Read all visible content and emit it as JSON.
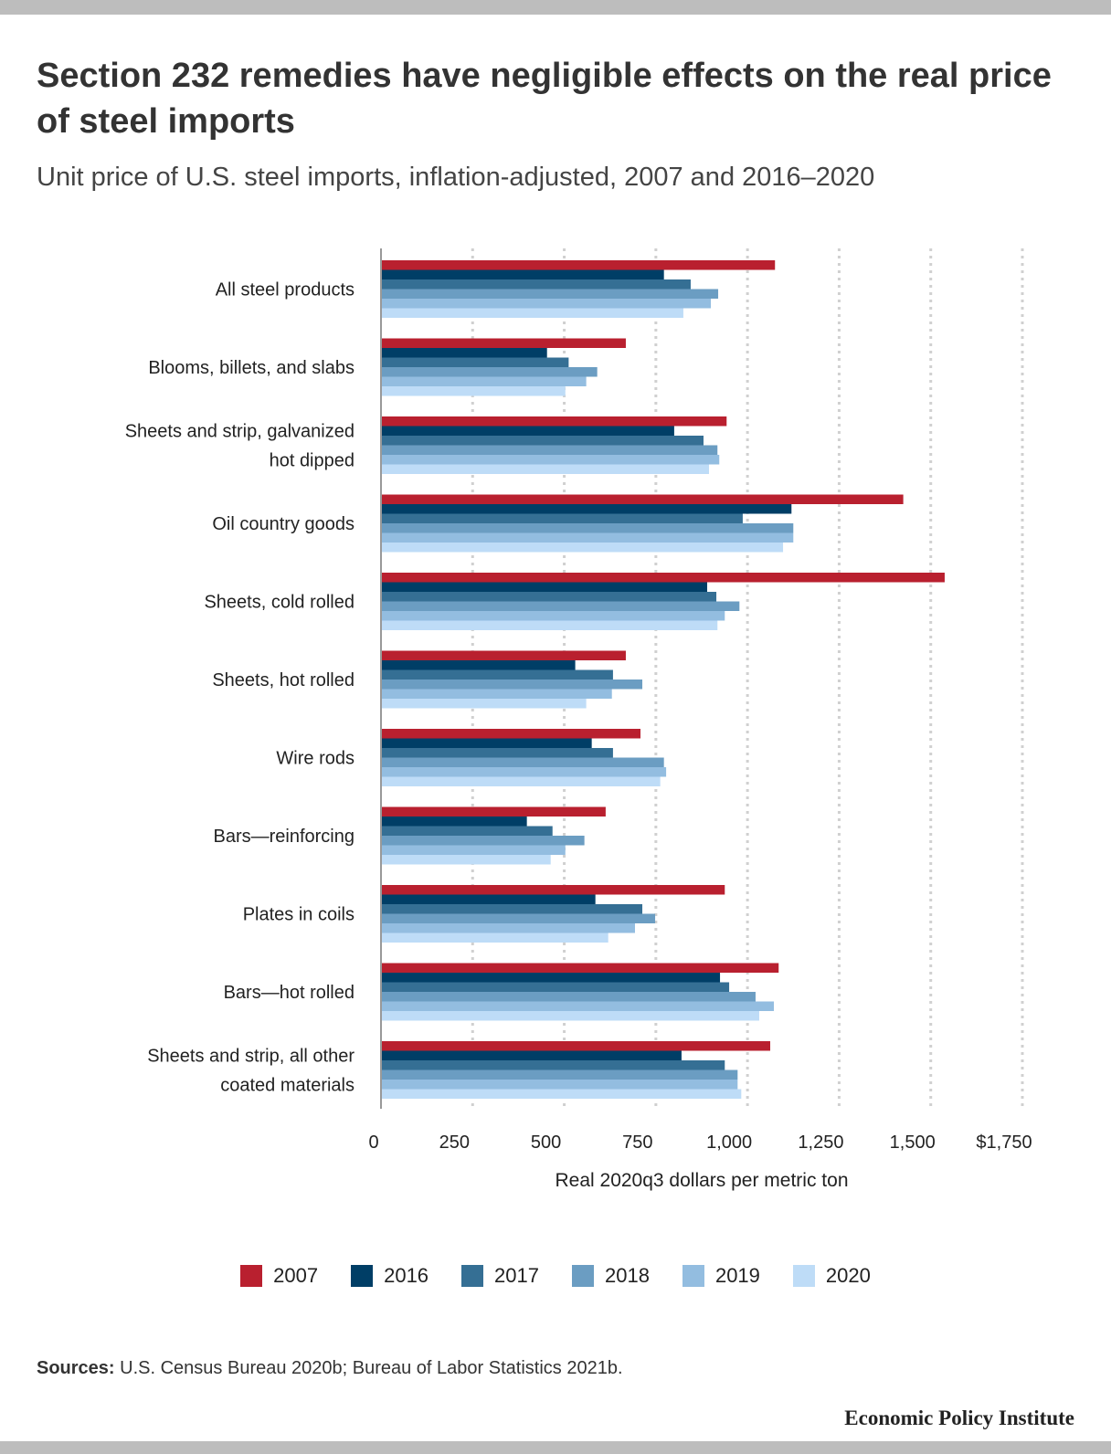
{
  "title": "Section 232 remedies have negligible effects on the real price of steel imports",
  "subtitle": "Unit price of U.S. steel imports, inflation-adjusted, 2007 and 2016–2020",
  "source_label": "Sources:",
  "source_text": "U.S. Census Bureau 2020b; Bureau of Labor Statistics 2021b.",
  "brand": "Economic Policy Institute",
  "chart_data": {
    "type": "bar",
    "orientation": "horizontal",
    "title": "Section 232 remedies have negligible effects on the real price of steel imports",
    "subtitle": "Unit price of U.S. steel imports, inflation-adjusted, 2007 and 2016–2020",
    "xlabel": "Real 2020q3 dollars per metric ton",
    "ylabel": "",
    "xlim": [
      0,
      1750
    ],
    "xticks": [
      0,
      250,
      500,
      750,
      1000,
      1250,
      1500,
      1750
    ],
    "xtick_labels": [
      "0",
      "250",
      "500",
      "750",
      "1,000",
      "1,250",
      "1,500",
      "$1,750"
    ],
    "grid": "vertical dotted",
    "legend_position": "bottom",
    "categories": [
      "All steel products",
      "Blooms, billets, and slabs",
      "Sheets and strip, galvanized hot dipped",
      "Oil country goods",
      "Sheets, cold rolled",
      "Sheets, hot rolled",
      "Wire rods",
      "Bars—reinforcing",
      "Plates in coils",
      "Bars—hot rolled",
      "Sheets and strip, all other coated materials"
    ],
    "series": [
      {
        "name": "2007",
        "color": "#b9202f",
        "values": [
          1075,
          668,
          943,
          1425,
          1538,
          668,
          708,
          613,
          938,
          1085,
          1062
        ]
      },
      {
        "name": "2016",
        "color": "#003e66",
        "values": [
          772,
          453,
          800,
          1120,
          890,
          530,
          575,
          398,
          585,
          925,
          820
        ]
      },
      {
        "name": "2017",
        "color": "#356f94",
        "values": [
          845,
          512,
          880,
          987,
          915,
          633,
          633,
          468,
          713,
          950,
          938
        ]
      },
      {
        "name": "2018",
        "color": "#6b9dc2",
        "values": [
          920,
          590,
          918,
          1125,
          978,
          713,
          772,
          555,
          748,
          1022,
          973
        ]
      },
      {
        "name": "2019",
        "color": "#93bde0",
        "values": [
          900,
          560,
          923,
          1125,
          938,
          630,
          778,
          503,
          693,
          1072,
          973
        ]
      },
      {
        "name": "2020",
        "color": "#bedcf7",
        "values": [
          825,
          503,
          895,
          1097,
          918,
          560,
          762,
          463,
          620,
          1032,
          983
        ]
      }
    ]
  }
}
